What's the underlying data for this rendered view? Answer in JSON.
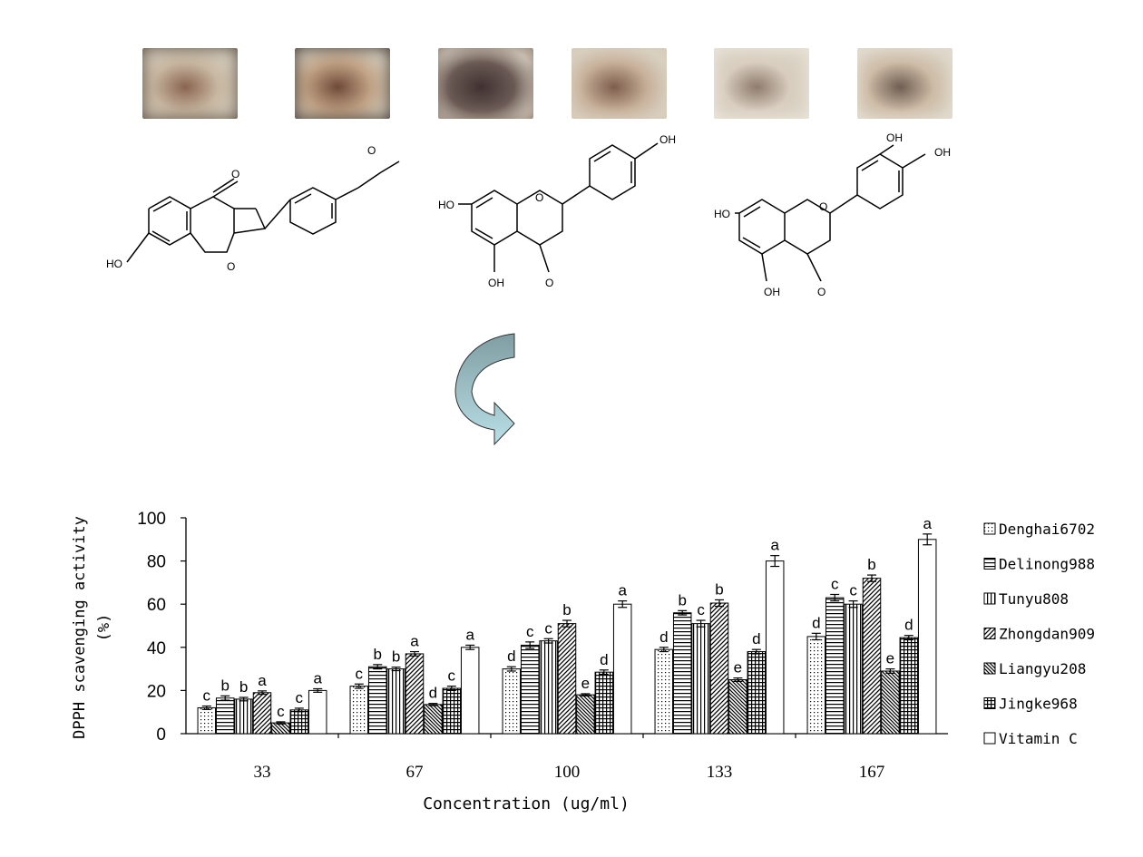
{
  "photos": [
    {
      "colors": [
        "#c9b8a2",
        "#8a6450",
        "#5a4a3e"
      ]
    },
    {
      "colors": [
        "#c2a386",
        "#6e4a38",
        "#3f332b"
      ]
    },
    {
      "colors": [
        "#6b5a55",
        "#3f3231",
        "#8e7a70"
      ]
    },
    {
      "colors": [
        "#c7b09a",
        "#7d5e4c",
        "#d8c9b8"
      ]
    },
    {
      "colors": [
        "#d8cdbf",
        "#8f7c6d",
        "#efe8df"
      ]
    },
    {
      "colors": [
        "#cdbba6",
        "#6f5e52",
        "#e6ddd1"
      ]
    }
  ],
  "structures": {
    "atom_labels": [
      "O",
      "O",
      "O",
      "HO",
      "OH",
      "O",
      "HO",
      "OH",
      "O",
      "OH",
      "OH",
      "O",
      "HO",
      "OH",
      "O"
    ]
  },
  "arrow": {
    "fill_top": "#7f9ea3",
    "fill_bottom": "#b9dfe6"
  },
  "chart_data": {
    "type": "bar",
    "title": "",
    "xlabel": "Concentration (ug/ml)",
    "ylabel": "DPPH scavenging activity",
    "ylabel2": "(%)",
    "ylim": [
      0,
      100
    ],
    "yticks": [
      "0",
      "20",
      "40",
      "60",
      "80",
      "100"
    ],
    "categories": [
      "33",
      "67",
      "100",
      "133",
      "167"
    ],
    "legend_position": "right",
    "grid": false,
    "series": [
      {
        "name": "Denghai6702",
        "pattern": "dots",
        "values": [
          12,
          22,
          30,
          39,
          45
        ],
        "errors": [
          0.8,
          1,
          1,
          1,
          1.5
        ],
        "letters": [
          "c",
          "c",
          "d",
          "d",
          "d"
        ]
      },
      {
        "name": "Delinong988",
        "pattern": "hlines",
        "values": [
          16.5,
          31,
          41,
          56,
          63
        ],
        "errors": [
          1,
          1,
          1.5,
          1,
          1.5
        ],
        "letters": [
          "b",
          "b",
          "c",
          "b",
          "c"
        ]
      },
      {
        "name": "Tunyu808",
        "pattern": "vlines",
        "values": [
          16,
          30,
          43,
          51,
          60
        ],
        "errors": [
          0.8,
          0.8,
          1,
          1.5,
          1.5
        ],
        "letters": [
          "b",
          "b",
          "c",
          "c",
          "c"
        ]
      },
      {
        "name": "Zhongdan909",
        "pattern": "diag",
        "values": [
          19,
          37,
          51,
          60.5,
          72
        ],
        "errors": [
          0.8,
          1,
          1.5,
          1.5,
          1.5
        ],
        "letters": [
          "a",
          "a",
          "b",
          "b",
          "b"
        ]
      },
      {
        "name": "Liangyu208",
        "pattern": "diag2",
        "values": [
          5,
          13.5,
          18,
          25,
          29
        ],
        "errors": [
          0.5,
          0.5,
          0.5,
          0.8,
          1
        ],
        "letters": [
          "c",
          "d",
          "e",
          "e",
          "e"
        ]
      },
      {
        "name": "Jingke968",
        "pattern": "grid",
        "values": [
          11,
          21,
          28.5,
          38,
          44.5
        ],
        "errors": [
          0.8,
          1,
          1,
          1,
          1
        ],
        "letters": [
          "c",
          "c",
          "d",
          "d",
          "d"
        ]
      },
      {
        "name": "Vitamin C",
        "pattern": "none",
        "values": [
          20,
          40,
          60,
          80,
          90
        ],
        "errors": [
          0.8,
          1,
          1.5,
          2.5,
          2.5
        ],
        "letters": [
          "a",
          "a",
          "a",
          "a",
          "a"
        ]
      }
    ]
  }
}
